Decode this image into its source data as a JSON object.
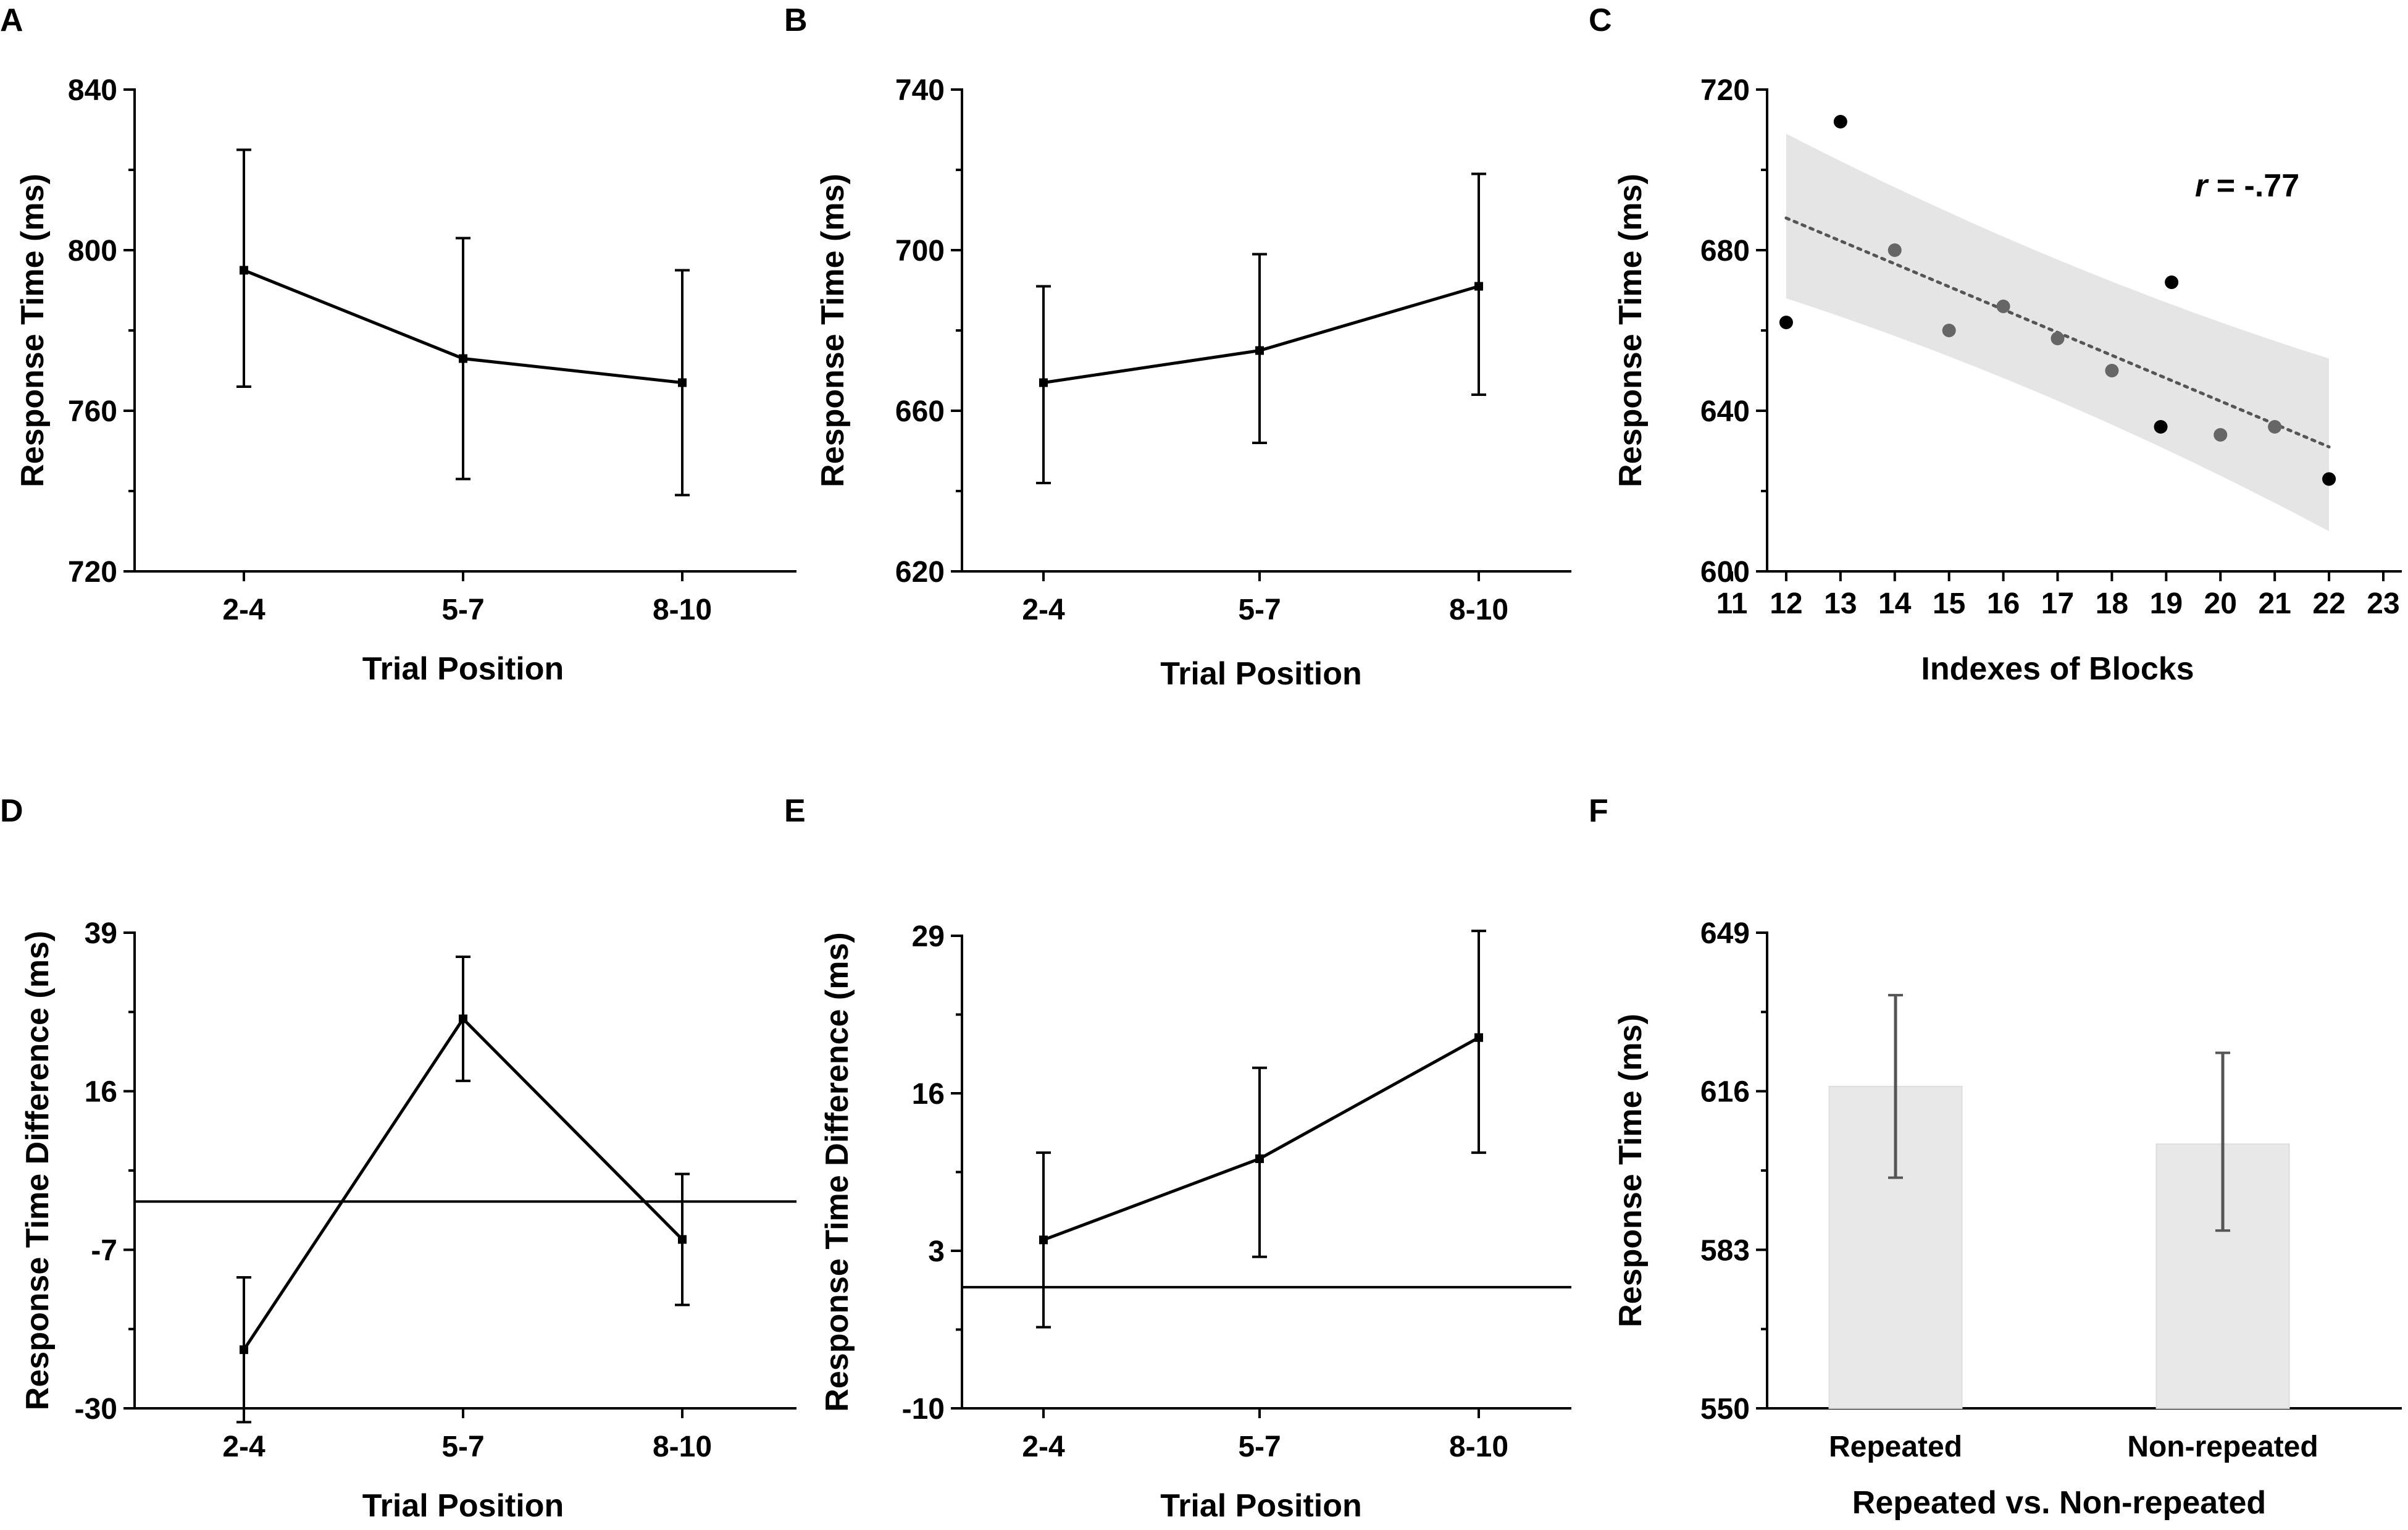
{
  "chart_data": [
    {
      "panel": "A",
      "type": "line",
      "categories": [
        "2-4",
        "5-7",
        "8-10"
      ],
      "values": [
        795,
        773,
        767
      ],
      "error_low": [
        766,
        743,
        739
      ],
      "error_high": [
        825,
        803,
        795
      ],
      "xlabel": "Trial Position",
      "ylabel": "Response Time (ms)",
      "ylim": [
        720,
        840
      ],
      "yticks": [
        720,
        760,
        800,
        840
      ],
      "ytick_labels": [
        "720",
        "760",
        "800",
        "840"
      ]
    },
    {
      "panel": "B",
      "type": "line",
      "categories": [
        "2-4",
        "5-7",
        "8-10"
      ],
      "values": [
        667,
        675,
        691
      ],
      "error_low": [
        642,
        652,
        664
      ],
      "error_high": [
        691,
        699,
        719
      ],
      "xlabel": "Trial Position",
      "ylabel": "Response Time (ms)",
      "ylim": [
        620,
        740
      ],
      "yticks": [
        620,
        660,
        700,
        740
      ],
      "ytick_labels": [
        "620",
        "660",
        "700",
        "740"
      ]
    },
    {
      "panel": "C",
      "type": "scatter",
      "points": [
        {
          "x": 12,
          "y": 662,
          "shade": "#000000"
        },
        {
          "x": 13,
          "y": 712,
          "shade": "#000000"
        },
        {
          "x": 14,
          "y": 680,
          "shade": "#666666"
        },
        {
          "x": 15,
          "y": 660,
          "shade": "#666666"
        },
        {
          "x": 16,
          "y": 666,
          "shade": "#666666"
        },
        {
          "x": 17,
          "y": 658,
          "shade": "#666666"
        },
        {
          "x": 18,
          "y": 650,
          "shade": "#666666"
        },
        {
          "x": 18.9,
          "y": 636,
          "shade": "#000000"
        },
        {
          "x": 19.1,
          "y": 672,
          "shade": "#000000"
        },
        {
          "x": 20,
          "y": 634,
          "shade": "#666666"
        },
        {
          "x": 21,
          "y": 636,
          "shade": "#666666"
        },
        {
          "x": 22,
          "y": 623,
          "shade": "#000000"
        }
      ],
      "fit_line": {
        "x": [
          12,
          22
        ],
        "y": [
          688,
          631
        ]
      },
      "confidence_band": {
        "x": [
          12,
          22
        ],
        "upper": [
          709,
          653
        ],
        "lower": [
          668,
          610
        ]
      },
      "annotation": {
        "r_label": "r",
        "value_label": " = -.77"
      },
      "xlabel": "Indexes of Blocks",
      "ylabel": "Response Time (ms)",
      "xlim": [
        11,
        23
      ],
      "ylim": [
        600,
        720
      ],
      "xticks": [
        11,
        12,
        13,
        14,
        15,
        16,
        17,
        18,
        19,
        20,
        21,
        22,
        23
      ],
      "xtick_labels": [
        "11",
        "12",
        "13",
        "14",
        "15",
        "16",
        "17",
        "18",
        "19",
        "20",
        "21",
        "22",
        "23"
      ],
      "yticks": [
        600,
        640,
        680,
        720
      ],
      "ytick_labels": [
        "600",
        "640",
        "680",
        "720"
      ]
    },
    {
      "panel": "D",
      "type": "line",
      "categories": [
        "2-4",
        "5-7",
        "8-10"
      ],
      "values": [
        -21.5,
        26.5,
        -5.5
      ],
      "error_low": [
        -32,
        17.5,
        -15
      ],
      "error_high": [
        -11,
        35.5,
        4
      ],
      "reference_line": 0,
      "xlabel": "Trial Position",
      "ylabel": "Response Time Difference (ms)",
      "ylim": [
        -30,
        39
      ],
      "yticks": [
        -30,
        -7,
        16,
        39
      ],
      "ytick_labels": [
        "-30",
        "-7",
        "16",
        "39"
      ]
    },
    {
      "panel": "E",
      "type": "line",
      "categories": [
        "2-4",
        "5-7",
        "8-10"
      ],
      "values": [
        3.9,
        10.6,
        20.6
      ],
      "error_low": [
        -3.3,
        2.5,
        11.1
      ],
      "error_high": [
        11.1,
        18.1,
        29.4
      ],
      "reference_line": 0,
      "xlabel": "Trial Position",
      "ylabel": "Response Time Difference (ms)",
      "ylim": [
        -10,
        29
      ],
      "yticks": [
        -10,
        3,
        16,
        29
      ],
      "ytick_labels": [
        "-10",
        "3",
        "16",
        "29"
      ]
    },
    {
      "panel": "F",
      "type": "bar",
      "categories": [
        "Repeated",
        "Non-repeated"
      ],
      "values": [
        617,
        605
      ],
      "error_low": [
        598,
        587
      ],
      "error_high": [
        636,
        624
      ],
      "xlabel": "Repeated vs. Non-repeated",
      "ylabel": "Response Time (ms)",
      "ylim": [
        550,
        649
      ],
      "yticks": [
        550,
        583,
        616,
        649
      ],
      "ytick_labels": [
        "550",
        "583",
        "616",
        "649"
      ],
      "bar_color": "#e8e8e8",
      "error_color": "#555555"
    }
  ],
  "colors": {
    "band": "#e5e5e5",
    "fit_line": "#555555",
    "scatter_dark": "#000000",
    "scatter_grey": "#666666"
  }
}
